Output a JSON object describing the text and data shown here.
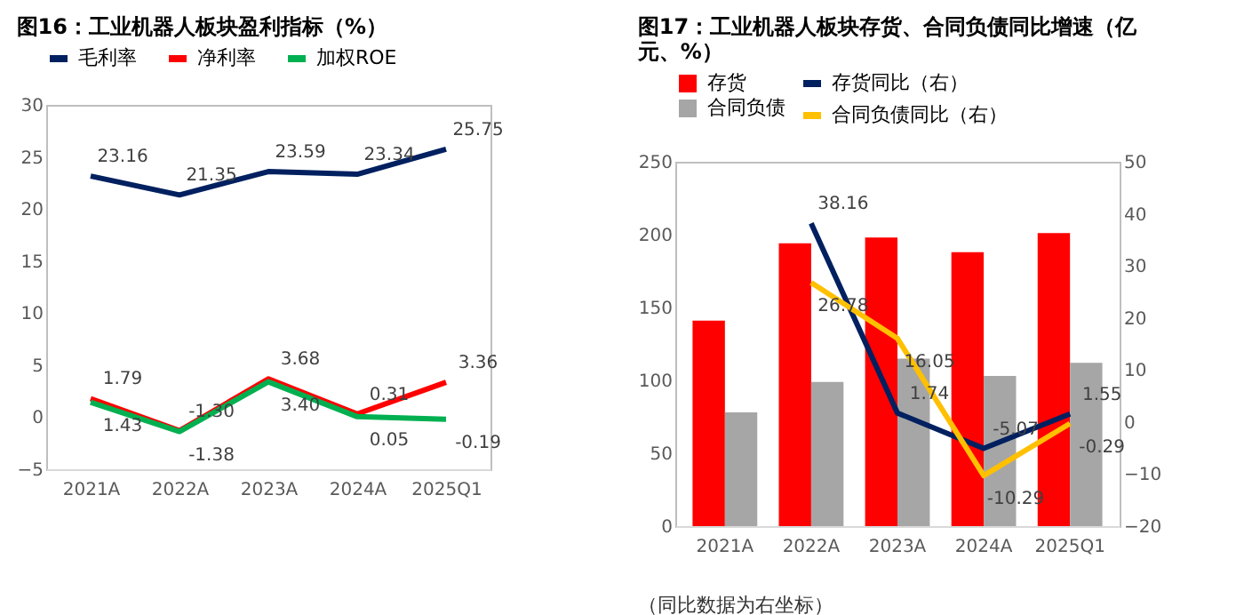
{
  "chart_data": [
    {
      "type": "line",
      "title": "图16：工业机器人板块盈利指标（%）",
      "categories": [
        "2021A",
        "2022A",
        "2023A",
        "2024A",
        "2025Q1"
      ],
      "ylim": [
        -5,
        30
      ],
      "yticks": [
        -5,
        0,
        5,
        10,
        15,
        20,
        25,
        30
      ],
      "grid": false,
      "legend": "top",
      "series": [
        {
          "name": "毛利率",
          "color": "#002060",
          "values": [
            23.16,
            21.35,
            23.59,
            23.34,
            25.75
          ],
          "value_labels": [
            "23.16",
            "21.35",
            "23.59",
            "23.34",
            "25.75"
          ]
        },
        {
          "name": "净利率",
          "color": "#ff0000",
          "values": [
            1.79,
            -1.3,
            3.68,
            0.31,
            3.36
          ],
          "value_labels": [
            "1.79",
            "-1.30",
            "3.68",
            "0.31",
            "3.36"
          ]
        },
        {
          "name": "加权ROE",
          "color": "#00b050",
          "values": [
            1.43,
            -1.38,
            3.4,
            0.05,
            -0.19
          ],
          "value_labels": [
            "1.43",
            "-1.38",
            "3.40",
            "0.05",
            "-0.19"
          ]
        }
      ]
    },
    {
      "type": "bar",
      "title": "图17：工业机器人板块存货、合同负债同比增速（亿元、%）",
      "categories": [
        "2021A",
        "2022A",
        "2023A",
        "2024A",
        "2025Q1"
      ],
      "ylim": [
        0,
        250
      ],
      "yticks": [
        0,
        50,
        100,
        150,
        200,
        250
      ],
      "y2lim": [
        -20,
        50
      ],
      "y2ticks": [
        -20,
        -10,
        0,
        10,
        20,
        30,
        40,
        50
      ],
      "grid": false,
      "legend": "top",
      "annotations": [
        "（同比数据为右坐标）"
      ],
      "series": [
        {
          "name": "存货",
          "color": "#ff0000",
          "values": [
            141,
            194,
            198,
            188,
            201
          ]
        },
        {
          "name": "合同负债",
          "color": "#a6a6a6",
          "values": [
            78,
            99,
            115,
            103,
            112
          ]
        },
        {
          "name": "存货同比（右）",
          "type": "line",
          "axis": "y2",
          "color": "#002060",
          "values": [
            null,
            38.16,
            1.74,
            -5.07,
            1.55
          ],
          "value_labels": [
            null,
            "38.16",
            "1.74",
            "-5.07",
            "1.55"
          ]
        },
        {
          "name": "合同负债同比（右）",
          "type": "line",
          "axis": "y2",
          "color": "#ffc000",
          "values": [
            null,
            26.78,
            16.05,
            -10.29,
            -0.29
          ],
          "value_labels": [
            null,
            "26.78",
            "16.05",
            "-10.29",
            "-0.29"
          ]
        }
      ]
    }
  ]
}
